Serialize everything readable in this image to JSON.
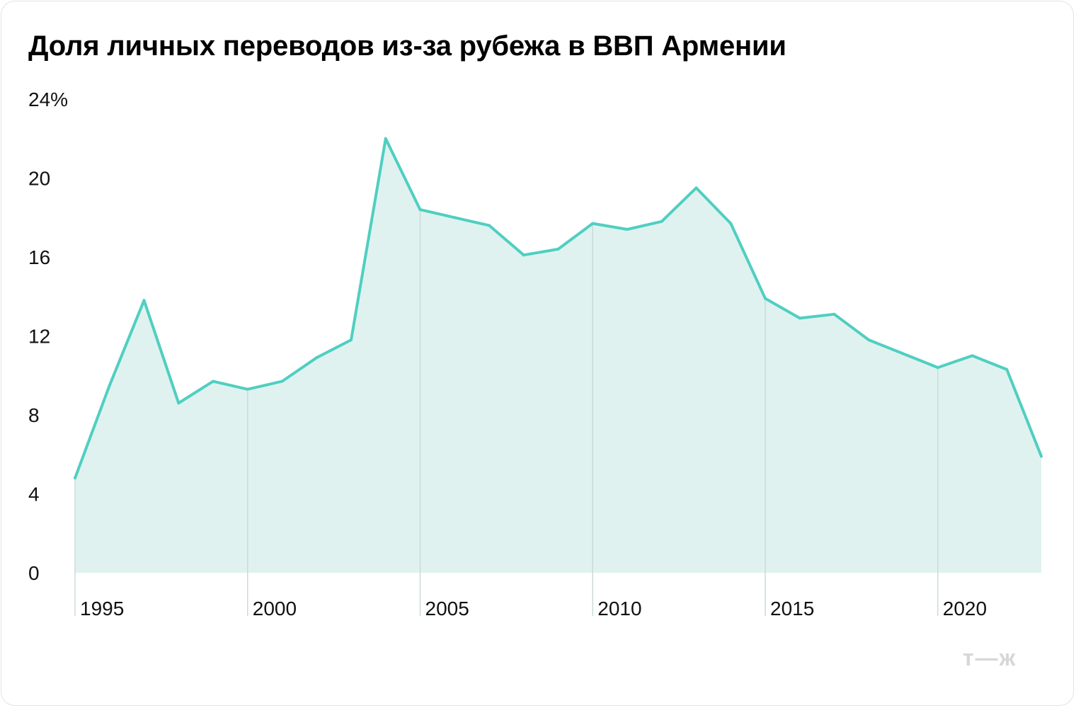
{
  "title": "Доля личных переводов из-за рубежа в ВВП Армении",
  "logo_text": "т—ж",
  "colors": {
    "line": "#4fcfc1",
    "area": "#e0f2f0",
    "gridline": "#c9dcda",
    "text": "#111111",
    "logo": "#d7d7d7"
  },
  "chart_data": {
    "type": "area",
    "title": "Доля личных переводов из-за рубежа в ВВП Армении",
    "xlabel": "",
    "ylabel": "",
    "x": [
      1995,
      1996,
      1997,
      1998,
      1999,
      2000,
      2001,
      2002,
      2003,
      2004,
      2005,
      2006,
      2007,
      2008,
      2009,
      2010,
      2011,
      2012,
      2013,
      2014,
      2015,
      2016,
      2017,
      2018,
      2019,
      2020,
      2021,
      2022,
      2023
    ],
    "series": [
      {
        "values": [
          4.8,
          9.5,
          13.8,
          8.6,
          9.7,
          9.3,
          9.7,
          10.9,
          11.8,
          22.0,
          18.4,
          18.0,
          17.6,
          16.1,
          16.4,
          17.7,
          17.4,
          17.8,
          19.5,
          17.7,
          13.9,
          12.9,
          13.1,
          11.8,
          11.1,
          10.4,
          11.0,
          10.3,
          5.9
        ]
      }
    ],
    "ylim": [
      0,
      24
    ],
    "xlim": [
      1995,
      2023
    ],
    "y_ticks": [
      "0",
      "4",
      "8",
      "12",
      "16",
      "20",
      "24%"
    ],
    "y_tick_values": [
      0,
      4,
      8,
      12,
      16,
      20,
      24
    ],
    "x_ticks": [
      "1995",
      "2000",
      "2005",
      "2010",
      "2015",
      "2020"
    ],
    "x_tick_values": [
      1995,
      2000,
      2005,
      2010,
      2015,
      2020
    ],
    "grid": "vertical lines at labeled years",
    "legend": "none"
  }
}
